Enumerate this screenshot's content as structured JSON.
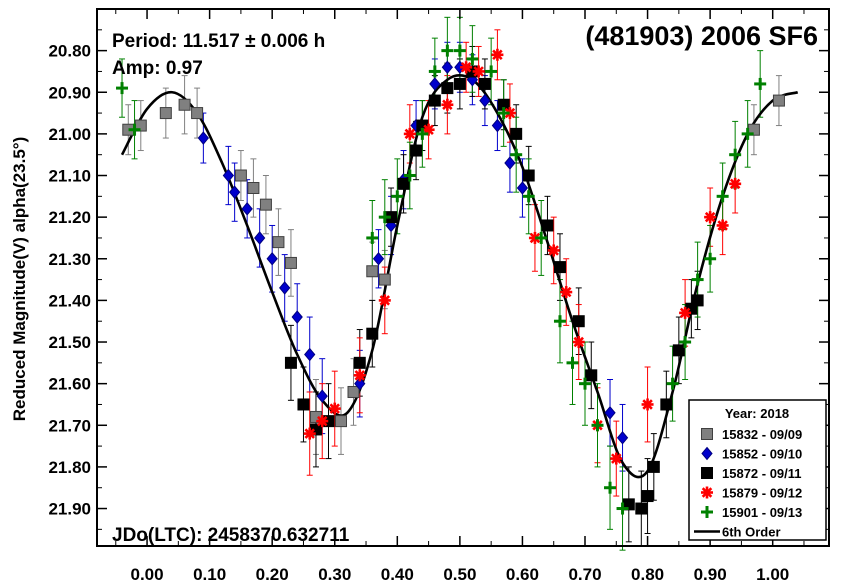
{
  "chart_data": {
    "type": "scatter",
    "title": "(481903) 2006 SF6",
    "ylabel": "Reduced Magnitude(V) alpha(23.5°)",
    "xlabel": "",
    "annotations": {
      "period": "Period: 11.517 ± 0.006 h",
      "amp": "Amp: 0.97",
      "jdo": "JDo(LTC): 2458370.632711"
    },
    "xlim": [
      -0.08,
      1.09
    ],
    "ylim": [
      21.99,
      20.7
    ],
    "y_inverted": true,
    "grid": false,
    "legend_position": "bottom-right",
    "x_ticks": [
      "0.00",
      "0.10",
      "0.20",
      "0.30",
      "0.40",
      "0.50",
      "0.60",
      "0.70",
      "0.80",
      "0.90",
      "1.00"
    ],
    "x_tick_values": [
      0,
      0.1,
      0.2,
      0.3,
      0.4,
      0.5,
      0.6,
      0.7,
      0.8,
      0.9,
      1.0
    ],
    "y_ticks": [
      "20.80",
      "20.90",
      "21.00",
      "21.10",
      "21.20",
      "21.30",
      "21.40",
      "21.50",
      "21.60",
      "21.70",
      "21.80",
      "21.90"
    ],
    "y_tick_values": [
      20.8,
      20.9,
      21.0,
      21.1,
      21.2,
      21.3,
      21.4,
      21.5,
      21.6,
      21.7,
      21.8,
      21.9
    ],
    "legend_title": "Year: 2018",
    "series": [
      {
        "name": "15832 - 09/09",
        "marker": "square",
        "color": "#808080",
        "edge": "#404040",
        "x": [
          -0.03,
          -0.01,
          0.03,
          0.06,
          0.08,
          0.15,
          0.17,
          0.19,
          0.21,
          0.23,
          0.27,
          0.31,
          0.33,
          0.36,
          0.38,
          0.97,
          1.01
        ],
        "y": [
          20.99,
          20.98,
          20.95,
          20.93,
          20.95,
          21.1,
          21.13,
          21.17,
          21.26,
          21.31,
          21.68,
          21.69,
          21.62,
          21.33,
          21.35,
          20.99,
          20.92
        ],
        "err": [
          0.06,
          0.06,
          0.06,
          0.07,
          0.06,
          0.06,
          0.07,
          0.07,
          0.08,
          0.08,
          0.09,
          0.08,
          0.08,
          0.07,
          0.07,
          0.06,
          0.06
        ]
      },
      {
        "name": "15852 - 09/10",
        "marker": "diamond",
        "color": "#0000cc",
        "edge": "#000080",
        "x": [
          0.09,
          0.13,
          0.14,
          0.16,
          0.18,
          0.2,
          0.22,
          0.24,
          0.26,
          0.28,
          0.34,
          0.37,
          0.39,
          0.41,
          0.43,
          0.46,
          0.48,
          0.5,
          0.52,
          0.54,
          0.56,
          0.58,
          0.6,
          0.74,
          0.76
        ],
        "y": [
          21.01,
          21.1,
          21.14,
          21.18,
          21.25,
          21.3,
          21.37,
          21.44,
          21.53,
          21.63,
          21.6,
          21.3,
          21.22,
          21.11,
          20.98,
          20.88,
          20.84,
          20.84,
          20.87,
          20.92,
          20.98,
          21.07,
          21.13,
          21.67,
          21.73
        ],
        "err": [
          0.06,
          0.07,
          0.07,
          0.07,
          0.07,
          0.08,
          0.08,
          0.08,
          0.09,
          0.09,
          0.08,
          0.07,
          0.07,
          0.07,
          0.06,
          0.06,
          0.06,
          0.06,
          0.06,
          0.06,
          0.06,
          0.07,
          0.07,
          0.08,
          0.08
        ]
      },
      {
        "name": "15872 - 09/11",
        "marker": "square",
        "color": "#000000",
        "edge": "#000000",
        "x": [
          0.23,
          0.25,
          0.27,
          0.29,
          0.34,
          0.36,
          0.39,
          0.41,
          0.43,
          0.44,
          0.46,
          0.48,
          0.5,
          0.52,
          0.54,
          0.57,
          0.59,
          0.61,
          0.64,
          0.66,
          0.69,
          0.71,
          0.77,
          0.79,
          0.8,
          0.81,
          0.83,
          0.85,
          0.87,
          0.88
        ],
        "y": [
          21.55,
          21.65,
          21.71,
          21.69,
          21.55,
          21.48,
          21.2,
          21.12,
          21.04,
          20.98,
          20.92,
          20.89,
          20.88,
          20.85,
          20.88,
          20.93,
          21.0,
          21.1,
          21.22,
          21.32,
          21.45,
          21.58,
          21.89,
          21.9,
          21.87,
          21.8,
          21.65,
          21.52,
          21.42,
          21.4
        ],
        "err": [
          0.09,
          0.09,
          0.09,
          0.09,
          0.08,
          0.08,
          0.07,
          0.07,
          0.07,
          0.06,
          0.06,
          0.06,
          0.06,
          0.06,
          0.06,
          0.06,
          0.07,
          0.07,
          0.07,
          0.08,
          0.08,
          0.08,
          0.09,
          0.09,
          0.09,
          0.08,
          0.08,
          0.08,
          0.07,
          0.07
        ]
      },
      {
        "name": "15879 - 09/12",
        "marker": "asterisk",
        "color": "#ff0000",
        "edge": "#cc0000",
        "x": [
          0.26,
          0.28,
          0.3,
          0.34,
          0.38,
          0.42,
          0.45,
          0.48,
          0.51,
          0.53,
          0.56,
          0.58,
          0.62,
          0.65,
          0.67,
          0.69,
          0.72,
          0.75,
          0.8,
          0.86,
          0.9,
          0.92,
          0.94
        ],
        "y": [
          21.72,
          21.69,
          21.66,
          21.58,
          21.4,
          21.0,
          20.99,
          20.93,
          20.84,
          20.85,
          20.81,
          20.95,
          21.25,
          21.28,
          21.38,
          21.5,
          21.7,
          21.78,
          21.65,
          21.43,
          21.2,
          21.22,
          21.12
        ],
        "err": [
          0.1,
          0.09,
          0.09,
          0.09,
          0.08,
          0.07,
          0.07,
          0.07,
          0.06,
          0.06,
          0.06,
          0.07,
          0.08,
          0.08,
          0.08,
          0.09,
          0.09,
          0.09,
          0.09,
          0.08,
          0.07,
          0.07,
          0.07
        ]
      },
      {
        "name": "15901 - 09/13",
        "marker": "plus",
        "color": "#008000",
        "edge": "#006000",
        "x": [
          -0.04,
          -0.02,
          0.36,
          0.38,
          0.4,
          0.42,
          0.44,
          0.46,
          0.48,
          0.5,
          0.52,
          0.55,
          0.57,
          0.59,
          0.61,
          0.63,
          0.66,
          0.68,
          0.7,
          0.72,
          0.74,
          0.76,
          0.84,
          0.86,
          0.88,
          0.9,
          0.92,
          0.94,
          0.96,
          0.98
        ],
        "y": [
          20.89,
          20.99,
          21.25,
          21.2,
          21.15,
          21.1,
          21.0,
          20.85,
          20.8,
          20.8,
          20.82,
          20.85,
          20.95,
          21.05,
          21.15,
          21.25,
          21.45,
          21.55,
          21.6,
          21.7,
          21.85,
          21.9,
          21.6,
          21.5,
          21.35,
          21.3,
          21.15,
          21.05,
          21.0,
          20.88
        ],
        "err": [
          0.07,
          0.07,
          0.09,
          0.09,
          0.09,
          0.08,
          0.08,
          0.08,
          0.08,
          0.08,
          0.08,
          0.08,
          0.08,
          0.09,
          0.09,
          0.09,
          0.1,
          0.1,
          0.1,
          0.1,
          0.1,
          0.1,
          0.09,
          0.09,
          0.09,
          0.08,
          0.08,
          0.08,
          0.08,
          0.08
        ]
      }
    ],
    "fit": {
      "name": "6th Order",
      "x": [
        -0.04,
        0.0,
        0.04,
        0.08,
        0.12,
        0.16,
        0.2,
        0.24,
        0.28,
        0.32,
        0.36,
        0.4,
        0.44,
        0.48,
        0.52,
        0.56,
        0.6,
        0.64,
        0.68,
        0.72,
        0.76,
        0.8,
        0.84,
        0.88,
        0.92,
        0.96,
        1.0,
        1.04
      ],
      "y": [
        21.05,
        20.94,
        20.9,
        20.95,
        21.07,
        21.22,
        21.38,
        21.53,
        21.64,
        21.67,
        21.52,
        21.22,
        20.96,
        20.87,
        20.87,
        20.95,
        21.08,
        21.26,
        21.45,
        21.62,
        21.79,
        21.81,
        21.62,
        21.36,
        21.15,
        21.0,
        20.92,
        20.9
      ]
    }
  }
}
